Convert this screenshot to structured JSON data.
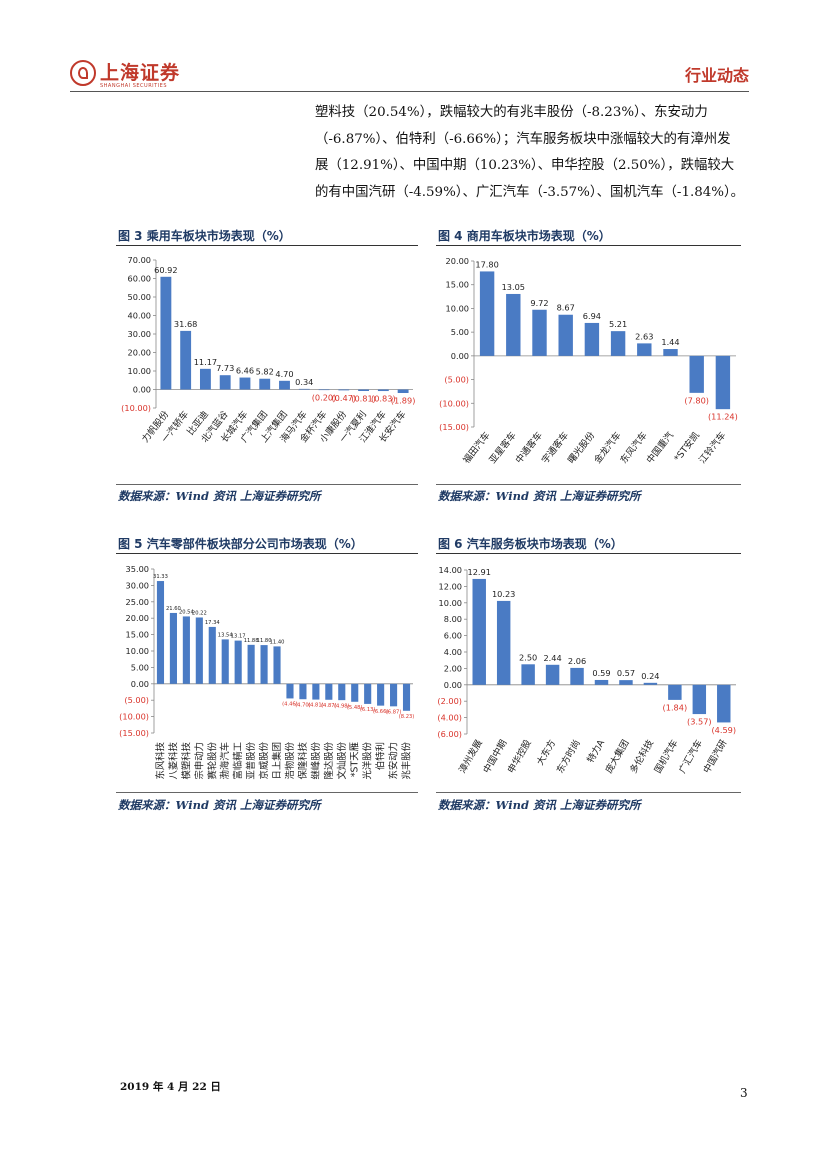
{
  "header": {
    "logo_cn": "上海证券",
    "logo_en": "SHANGHAI SECURITIES",
    "section": "行业动态"
  },
  "intro_lines": [
    "塑料技（20.54%），跌幅较大的有兆丰股份（-8.23%）、东安动力",
    "（-6.87%）、伯特利（-6.66%）；汽车服务板块中涨幅较大的有漳州发",
    "展（12.91%）、中国中期（10.23%）、申华控股（2.50%），跌幅较大",
    "的有中国汽研（-4.59%）、广汇汽车（-3.57%）、国机汽车（-1.84%）。"
  ],
  "colors": {
    "bar": "#4a7bc4",
    "negative_label": "#d9342b",
    "accent": "#c0392b",
    "title": "#1f3a64"
  },
  "source_text": "数据来源：Wind 资讯 上海证券研究所",
  "chart_data": [
    {
      "id": "fig3",
      "type": "bar",
      "title": "图 3 乘用车板块市场表现（%）",
      "categories": [
        "力帆股份",
        "一汽轿车",
        "比亚迪",
        "北汽蓝谷",
        "长城汽车",
        "广汽集团",
        "上汽集团",
        "海马汽车",
        "金杯汽车",
        "小康股份",
        "一汽夏利",
        "江淮汽车",
        "长安汽车"
      ],
      "values": [
        60.92,
        31.68,
        11.17,
        7.73,
        6.46,
        5.82,
        4.7,
        0.34,
        -0.2,
        -0.47,
        -0.81,
        -0.83,
        -1.89
      ],
      "labels": [
        "60.92",
        "31.68",
        "11.17",
        "7.73",
        "6.46",
        "5.82",
        "4.70",
        "0.34",
        "(0.20)",
        "(0.47)",
        "(0.81)",
        "(0.83)",
        "(1.89)"
      ],
      "ylim": [
        -10,
        70
      ],
      "yticks": [
        70,
        60,
        50,
        40,
        30,
        20,
        10,
        0,
        -10
      ],
      "ytick_labels": [
        "70.00",
        "60.00",
        "50.00",
        "40.00",
        "30.00",
        "20.00",
        "10.00",
        "0.00",
        "(10.00)"
      ]
    },
    {
      "id": "fig4",
      "type": "bar",
      "title": "图 4 商用车板块市场表现（%）",
      "categories": [
        "福田汽车",
        "亚星客车",
        "中通客车",
        "宇通客车",
        "曙光股份",
        "金龙汽车",
        "东风汽车",
        "中国重汽",
        "*ST安凯",
        "江铃汽车"
      ],
      "values": [
        17.8,
        13.05,
        9.72,
        8.67,
        6.94,
        5.21,
        2.63,
        1.44,
        -7.8,
        -11.24
      ],
      "labels": [
        "17.80",
        "13.05",
        "9.72",
        "8.67",
        "6.94",
        "5.21",
        "2.63",
        "1.44",
        "(7.80)",
        "(11.24)"
      ],
      "ylim": [
        -15,
        20
      ],
      "yticks": [
        20,
        15,
        10,
        5,
        0,
        -5,
        -10,
        -15
      ],
      "ytick_labels": [
        "20.00",
        "15.00",
        "10.00",
        "5.00",
        "0.00",
        "(5.00)",
        "(10.00)",
        "(15.00)"
      ]
    },
    {
      "id": "fig5",
      "type": "bar",
      "title": "图 5 汽车零部件板块部分公司市场表现（%）",
      "categories": [
        "东风科技",
        "八菱科技",
        "模塑科技",
        "宗申动力",
        "赛轮股份",
        "渤海汽车",
        "富临精工",
        "亚普股份",
        "京威股份",
        "日上集团",
        "浩物股份",
        "保隆科技",
        "继峰股份",
        "隆达股份",
        "文灿股份",
        "*ST天雁",
        "光洋股份",
        "伯特利",
        "东安动力",
        "兆丰股份"
      ],
      "values": [
        31.33,
        21.6,
        20.54,
        20.22,
        17.34,
        13.54,
        13.17,
        11.88,
        11.8,
        11.4,
        -4.46,
        -4.7,
        -4.81,
        -4.87,
        -4.98,
        -5.48,
        -6.13,
        -6.66,
        -6.87,
        -8.23
      ],
      "labels": [
        "31.33",
        "21.60",
        "20.54",
        "20.22",
        "17.34",
        "13.54",
        "13.17",
        "11.88",
        "11.80",
        "11.40",
        "(4.46)",
        "(4.70)",
        "(4.81)",
        "(4.87)",
        "(4.98)",
        "(5.48)",
        "(6.13)",
        "(6.66)",
        "(6.87)",
        "(8.23)"
      ],
      "ylim": [
        -15,
        35
      ],
      "yticks": [
        35,
        30,
        25,
        20,
        15,
        10,
        5,
        0,
        -5,
        -10,
        -15
      ],
      "ytick_labels": [
        "35.00",
        "30.00",
        "25.00",
        "20.00",
        "15.00",
        "10.00",
        "5.00",
        "0.00",
        "(5.00)",
        "(10.00)",
        "(15.00)"
      ]
    },
    {
      "id": "fig6",
      "type": "bar",
      "title": "图 6 汽车服务板块市场表现（%）",
      "categories": [
        "漳州发展",
        "中国中期",
        "申华控股",
        "大东方",
        "东方时尚",
        "特力A",
        "庞大集团",
        "多伦科技",
        "国机汽车",
        "广汇汽车",
        "中国汽研"
      ],
      "values": [
        12.91,
        10.23,
        2.5,
        2.44,
        2.06,
        0.59,
        0.57,
        0.24,
        -1.84,
        -3.57,
        -4.59
      ],
      "labels": [
        "12.91",
        "10.23",
        "2.50",
        "2.44",
        "2.06",
        "0.59",
        "0.57",
        "0.24",
        "(1.84)",
        "(3.57)",
        "(4.59)"
      ],
      "ylim": [
        -6,
        14
      ],
      "yticks": [
        14,
        12,
        10,
        8,
        6,
        4,
        2,
        0,
        -2,
        -4,
        -6
      ],
      "ytick_labels": [
        "14.00",
        "12.00",
        "10.00",
        "8.00",
        "6.00",
        "4.00",
        "2.00",
        "0.00",
        "(2.00)",
        "(4.00)",
        "(6.00)"
      ]
    }
  ],
  "footer": {
    "date": "2019 年 4 月 22 日",
    "page": "3"
  }
}
